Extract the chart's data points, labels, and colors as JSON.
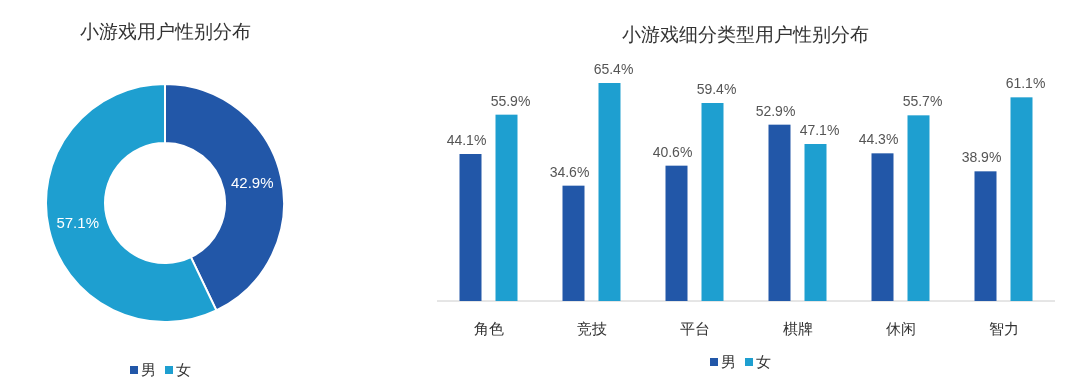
{
  "chart_data": [
    {
      "type": "donut",
      "title": "小游戏用户性别分布",
      "categories": [
        "男",
        "女"
      ],
      "values": [
        42.9,
        57.1
      ],
      "value_labels": [
        "42.9%",
        "57.1%"
      ],
      "colors": [
        "#2257a8",
        "#1e9fd0"
      ],
      "legend": "bottom"
    },
    {
      "type": "bar",
      "title": "小游戏细分类型用户性别分布",
      "categories": [
        "角色",
        "竞技",
        "平台",
        "棋牌",
        "休闲",
        "智力"
      ],
      "series": [
        {
          "name": "男",
          "color": "#2257a8",
          "values": [
            44.1,
            34.6,
            40.6,
            52.9,
            44.3,
            38.9
          ],
          "value_labels": [
            "44.1%",
            "34.6%",
            "40.6%",
            "52.9%",
            "44.3%",
            "38.9%"
          ]
        },
        {
          "name": "女",
          "color": "#1e9fd0",
          "values": [
            55.9,
            65.4,
            59.4,
            47.1,
            55.7,
            61.1
          ],
          "value_labels": [
            "55.9%",
            "65.4%",
            "59.4%",
            "47.1%",
            "55.7%",
            "61.1%"
          ]
        }
      ],
      "legend": "bottom"
    }
  ]
}
